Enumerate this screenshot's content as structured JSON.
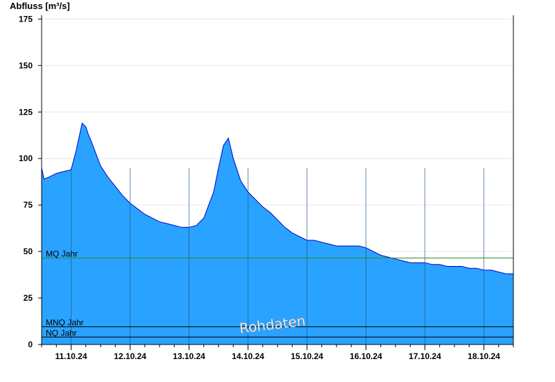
{
  "colors": {
    "area_fill": "#29a3ff",
    "line": "#0000cc",
    "mq_line": "#2e8b2e",
    "mnq_line": "#000000",
    "nq_line": "#000000",
    "grid": "#e6e6e6"
  },
  "watermark": "Rohdaten",
  "chart_data": {
    "type": "area",
    "ylabel": "Abfluss [m³/s]",
    "xlabel": "",
    "ylim": [
      0,
      177
    ],
    "yticks": [
      0,
      25,
      50,
      75,
      100,
      125,
      150,
      175
    ],
    "xlim_days": [
      10.5,
      18.5
    ],
    "xtick_labels": [
      "11.10.24",
      "12.10.24",
      "13.10.24",
      "14.10.24",
      "15.10.24",
      "16.10.24",
      "17.10.24",
      "18.10.24"
    ],
    "grid": true,
    "reference_lines": [
      {
        "label": "MQ Jahr",
        "value": 46.5
      },
      {
        "label": "MNQ Jahr",
        "value": 9.5
      },
      {
        "label": "NQ Jahr",
        "value": 4.0
      }
    ],
    "series": [
      {
        "x": [
          "10.10.24 12:00",
          "10.10.24 13:00",
          "10.10.24 15:00",
          "10.10.24 18:00",
          "10.10.24 21:00",
          "11.10.24 00:00",
          "11.10.24 02:00",
          "11.10.24 03:00",
          "11.10.24 04:30",
          "11.10.24 06:00",
          "11.10.24 07:00",
          "11.10.24 08:00",
          "11.10.24 10:00",
          "11.10.24 12:00",
          "11.10.24 15:00",
          "11.10.24 18:00",
          "11.10.24 21:00",
          "12.10.24 00:00",
          "12.10.24 03:00",
          "12.10.24 06:00",
          "12.10.24 09:00",
          "12.10.24 12:00",
          "12.10.24 15:00",
          "12.10.24 18:00",
          "12.10.24 21:00",
          "13.10.24 00:00",
          "13.10.24 03:00",
          "13.10.24 06:00",
          "13.10.24 08:00",
          "13.10.24 10:00",
          "13.10.24 12:00",
          "13.10.24 14:00",
          "13.10.24 16:00",
          "13.10.24 18:00",
          "13.10.24 19:30",
          "13.10.24 21:00",
          "14.10.24 00:00",
          "14.10.24 03:00",
          "14.10.24 06:00",
          "14.10.24 09:00",
          "14.10.24 12:00",
          "14.10.24 15:00",
          "14.10.24 18:00",
          "14.10.24 21:00",
          "15.10.24 00:00",
          "15.10.24 03:00",
          "15.10.24 06:00",
          "15.10.24 09:00",
          "15.10.24 12:00",
          "15.10.24 15:00",
          "15.10.24 18:00",
          "15.10.24 21:00",
          "16.10.24 00:00",
          "16.10.24 03:00",
          "16.10.24 06:00",
          "16.10.24 09:00",
          "16.10.24 12:00",
          "16.10.24 15:00",
          "16.10.24 18:00",
          "16.10.24 21:00",
          "17.10.24 00:00",
          "17.10.24 03:00",
          "17.10.24 06:00",
          "17.10.24 09:00",
          "17.10.24 12:00",
          "17.10.24 15:00",
          "17.10.24 18:00",
          "17.10.24 21:00",
          "18.10.24 00:00",
          "18.10.24 03:00",
          "18.10.24 06:00",
          "18.10.24 09:00",
          "18.10.24 12:00"
        ],
        "y": [
          95,
          89,
          90,
          92,
          93,
          94,
          104,
          110,
          119,
          117,
          113,
          110,
          103,
          96,
          90,
          85,
          80,
          76,
          73,
          70,
          68,
          66,
          65,
          64,
          63,
          63,
          64,
          68,
          75,
          82,
          95,
          107,
          111,
          100,
          94,
          88,
          82,
          78,
          74,
          71,
          67,
          63,
          60,
          58,
          56,
          56,
          55,
          54,
          53,
          53,
          53,
          53,
          52,
          50,
          48,
          47,
          46,
          45,
          44,
          44,
          44,
          43,
          43,
          42,
          42,
          42,
          41,
          41,
          40,
          40,
          39,
          38,
          38
        ]
      }
    ]
  }
}
